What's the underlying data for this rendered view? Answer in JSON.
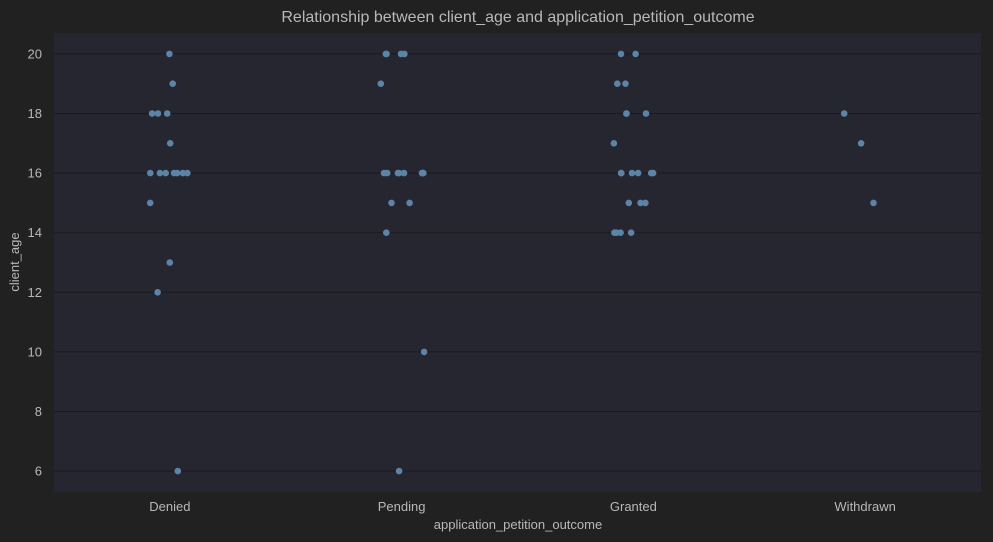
{
  "chart_data": {
    "type": "scatter",
    "subtype": "strip",
    "title": "Relationship between client_age and application_petition_outcome",
    "xlabel": "application_petition_outcome",
    "ylabel": "client_age",
    "categories": [
      "Denied",
      "Pending",
      "Granted",
      "Withdrawn"
    ],
    "ylim": [
      5.3,
      20.7
    ],
    "yticks": [
      6,
      8,
      10,
      12,
      14,
      16,
      18,
      20
    ],
    "grid": true,
    "legend": "none",
    "colors": {
      "background": "#212121",
      "plot_area": "#262631",
      "grid": "#1a1a1d",
      "point": "#5b84a6",
      "text": "#b8b8b8"
    },
    "points": [
      {
        "category": "Denied",
        "y": 20
      },
      {
        "category": "Denied",
        "y": 19
      },
      {
        "category": "Denied",
        "y": 18
      },
      {
        "category": "Denied",
        "y": 18
      },
      {
        "category": "Denied",
        "y": 18
      },
      {
        "category": "Denied",
        "y": 17
      },
      {
        "category": "Denied",
        "y": 16
      },
      {
        "category": "Denied",
        "y": 16
      },
      {
        "category": "Denied",
        "y": 16
      },
      {
        "category": "Denied",
        "y": 16
      },
      {
        "category": "Denied",
        "y": 16
      },
      {
        "category": "Denied",
        "y": 16
      },
      {
        "category": "Denied",
        "y": 16
      },
      {
        "category": "Denied",
        "y": 15
      },
      {
        "category": "Denied",
        "y": 13
      },
      {
        "category": "Denied",
        "y": 12
      },
      {
        "category": "Denied",
        "y": 6
      },
      {
        "category": "Pending",
        "y": 20
      },
      {
        "category": "Pending",
        "y": 20
      },
      {
        "category": "Pending",
        "y": 20
      },
      {
        "category": "Pending",
        "y": 20
      },
      {
        "category": "Pending",
        "y": 19
      },
      {
        "category": "Pending",
        "y": 16
      },
      {
        "category": "Pending",
        "y": 16
      },
      {
        "category": "Pending",
        "y": 16
      },
      {
        "category": "Pending",
        "y": 16
      },
      {
        "category": "Pending",
        "y": 16
      },
      {
        "category": "Pending",
        "y": 16
      },
      {
        "category": "Pending",
        "y": 16
      },
      {
        "category": "Pending",
        "y": 16
      },
      {
        "category": "Pending",
        "y": 15
      },
      {
        "category": "Pending",
        "y": 15
      },
      {
        "category": "Pending",
        "y": 14
      },
      {
        "category": "Pending",
        "y": 10
      },
      {
        "category": "Pending",
        "y": 6
      },
      {
        "category": "Granted",
        "y": 20
      },
      {
        "category": "Granted",
        "y": 20
      },
      {
        "category": "Granted",
        "y": 19
      },
      {
        "category": "Granted",
        "y": 19
      },
      {
        "category": "Granted",
        "y": 18
      },
      {
        "category": "Granted",
        "y": 18
      },
      {
        "category": "Granted",
        "y": 18
      },
      {
        "category": "Granted",
        "y": 17
      },
      {
        "category": "Granted",
        "y": 16
      },
      {
        "category": "Granted",
        "y": 16
      },
      {
        "category": "Granted",
        "y": 16
      },
      {
        "category": "Granted",
        "y": 16
      },
      {
        "category": "Granted",
        "y": 16
      },
      {
        "category": "Granted",
        "y": 16
      },
      {
        "category": "Granted",
        "y": 15
      },
      {
        "category": "Granted",
        "y": 15
      },
      {
        "category": "Granted",
        "y": 15
      },
      {
        "category": "Granted",
        "y": 14
      },
      {
        "category": "Granted",
        "y": 14
      },
      {
        "category": "Granted",
        "y": 14
      },
      {
        "category": "Granted",
        "y": 14
      },
      {
        "category": "Withdrawn",
        "y": 18
      },
      {
        "category": "Withdrawn",
        "y": 17
      },
      {
        "category": "Withdrawn",
        "y": 15
      }
    ]
  }
}
